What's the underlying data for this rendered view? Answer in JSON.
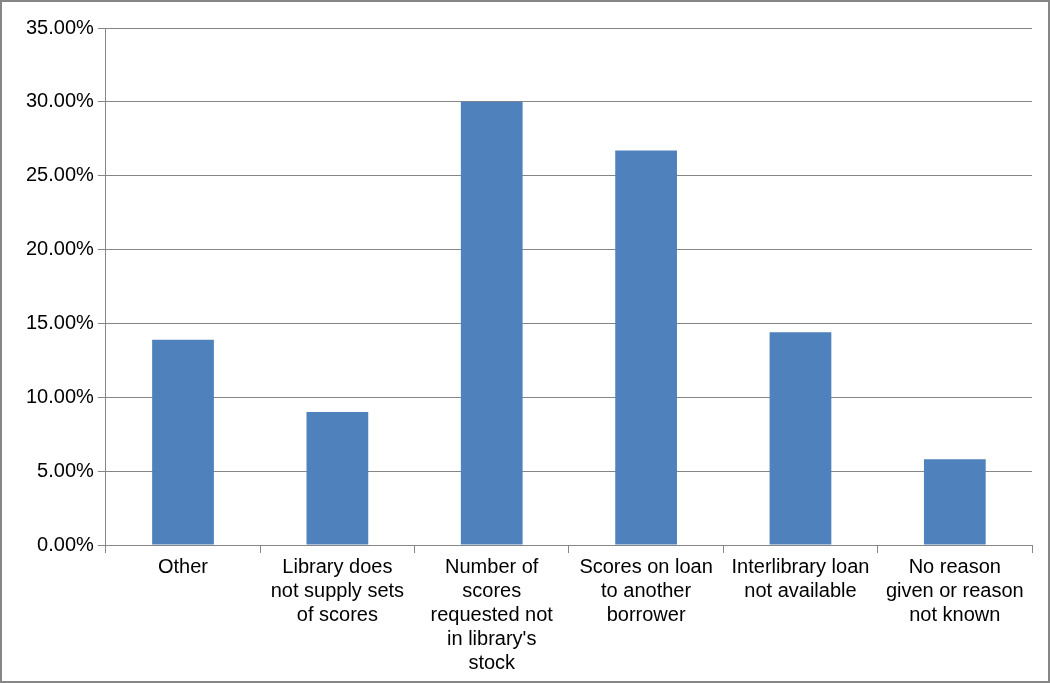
{
  "chart_data": {
    "type": "bar",
    "categories": [
      "Other",
      "Library does not supply sets of scores",
      "Number of scores requested not in library's stock",
      "Scores on loan to another borrower",
      "Interlibrary loan not available",
      "No reason given or reason not known"
    ],
    "values": [
      13.9,
      9.0,
      30.0,
      26.7,
      14.4,
      5.8
    ],
    "color": "#4f81bd",
    "ylim": [
      0,
      35
    ],
    "yticks": [
      {
        "value": 0,
        "label": "0.00%"
      },
      {
        "value": 5,
        "label": "5.00%"
      },
      {
        "value": 10,
        "label": "10.00%"
      },
      {
        "value": 15,
        "label": "15.00%"
      },
      {
        "value": 20,
        "label": "20.00%"
      },
      {
        "value": 25,
        "label": "25.00%"
      },
      {
        "value": 30,
        "label": "30.00%"
      },
      {
        "value": 35,
        "label": "35.00%"
      }
    ],
    "grid": "y"
  }
}
